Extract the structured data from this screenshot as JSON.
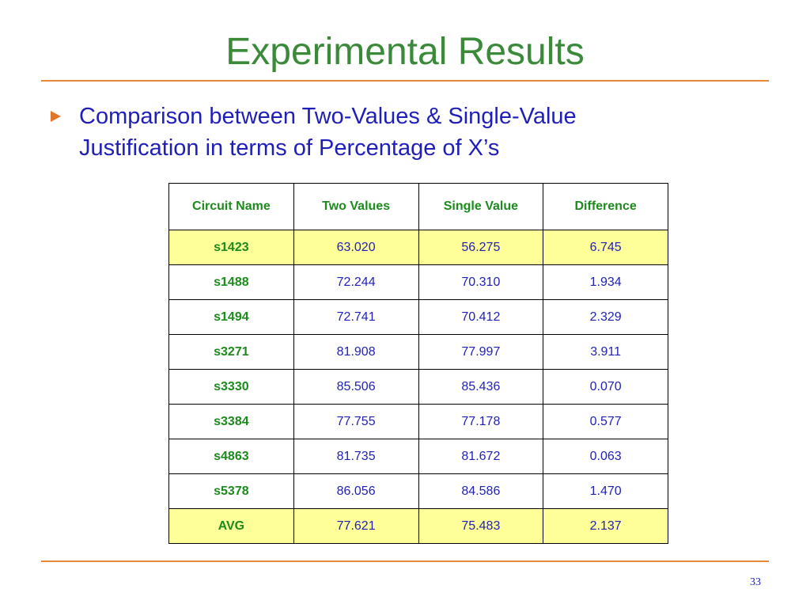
{
  "title": "Experimental Results",
  "bullet": [
    "Comparison between Two-Values & Single-Value",
    "Justification in terms of Percentage of X’s"
  ],
  "table": {
    "header": [
      "Circuit Name",
      "Two Values",
      "Single Value",
      "Difference"
    ],
    "rows": [
      [
        "s1423",
        "63.020",
        "56.275",
        "6.745"
      ],
      [
        "s1488",
        "72.244",
        "70.310",
        "1.934"
      ],
      [
        "s1494",
        "72.741",
        "70.412",
        "2.329"
      ],
      [
        "s3271",
        "81.908",
        "77.997",
        "3.911"
      ],
      [
        "s3330",
        "85.506",
        "85.436",
        "0.070"
      ],
      [
        "s3384",
        "77.755",
        "77.178",
        "0.577"
      ],
      [
        "s4863",
        "81.735",
        "81.672",
        "0.063"
      ],
      [
        "s5378",
        "86.056",
        "84.586",
        "1.470"
      ],
      [
        "AVG",
        "77.621",
        "75.483",
        "2.137"
      ]
    ]
  },
  "page_number": "33"
}
